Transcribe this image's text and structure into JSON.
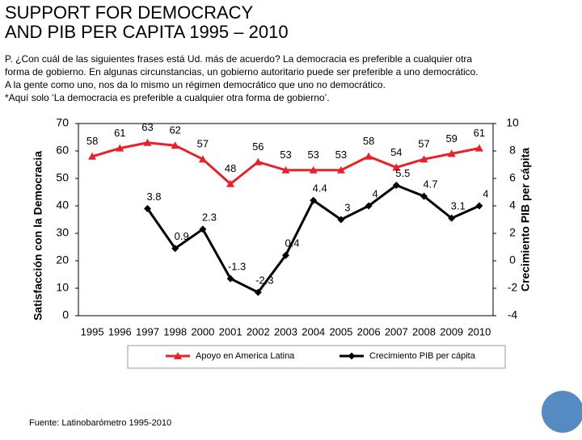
{
  "title_lines": [
    "SUPPORT FOR DEMOCRACY",
    "AND PIB PER CAPITA 1995 – 2010"
  ],
  "question_lines": [
    "P. ¿Con cuál de las siguientes frases está Ud. más de acuerdo? La democracia es preferible a cualquier otra",
    "forma de gobierno. En algunas circunstancias, un gobierno autoritario puede ser preferible a uno democrático.",
    "A la gente como uno, nos da lo mismo un régimen democrático que uno no democrático.",
    "*Aquí solo ‘La democracia es preferible a cualquier otra forma de gobierno’."
  ],
  "source": "Fuente: Latinobarómetro 1995-2010",
  "chart_data": {
    "type": "line",
    "categories": [
      "1995",
      "1996",
      "1997",
      "1998",
      "2000",
      "2001",
      "2002",
      "2003",
      "2004",
      "2005",
      "2006",
      "2007",
      "2008",
      "2009",
      "2010"
    ],
    "series": [
      {
        "name": "Apoyo en America Latina",
        "color": "#e8202a",
        "marker": "triangle",
        "values": [
          58,
          61,
          63,
          62,
          57,
          48,
          56,
          53,
          53,
          53,
          58,
          54,
          57,
          59,
          61
        ]
      },
      {
        "name": "Crecimiento PIB per cápita",
        "color": "#000000",
        "marker": "diamond",
        "axis": "y2",
        "values": [
          null,
          null,
          3.8,
          0.9,
          2.3,
          -1.3,
          -2.3,
          0.4,
          4.4,
          3,
          4,
          5.5,
          4.7,
          3.1,
          4
        ]
      }
    ],
    "ylim": [
      0,
      70
    ],
    "yticks": [
      0,
      10,
      20,
      30,
      40,
      50,
      60,
      70
    ],
    "y2lim": [
      -4,
      10
    ],
    "y2ticks": [
      -4,
      -2,
      0,
      2,
      4,
      6,
      8,
      10
    ],
    "ylabel": "Satisfacción con la Democracia",
    "y2label": "Crecimiento PIB per cápita",
    "grid": false,
    "data_labels": true
  }
}
